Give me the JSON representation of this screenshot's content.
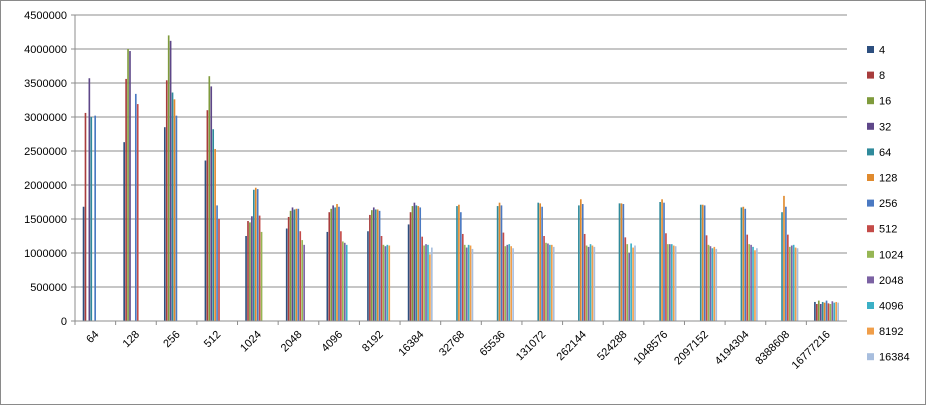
{
  "chart_data": {
    "type": "bar",
    "title": "",
    "xlabel": "",
    "ylabel": "",
    "ylim": [
      0,
      4500000
    ],
    "yticks": [
      0,
      500000,
      1000000,
      1500000,
      2000000,
      2500000,
      3000000,
      3500000,
      4000000,
      4500000
    ],
    "grid": true,
    "legend_position": "right",
    "categories": [
      "64",
      "128",
      "256",
      "512",
      "1024",
      "2048",
      "4096",
      "8192",
      "16384",
      "32768",
      "65536",
      "131072",
      "262144",
      "524288",
      "1048576",
      "2097152",
      "4194304",
      "8388608",
      "16777216"
    ],
    "series": [
      {
        "name": "4",
        "color": "#2d4f7f",
        "values": [
          1680000,
          2630000,
          2850000,
          2360000,
          1250000,
          1360000,
          1310000,
          1320000,
          1420000,
          null,
          null,
          null,
          null,
          null,
          null,
          null,
          null,
          null,
          280000
        ]
      },
      {
        "name": "8",
        "color": "#a83c3c",
        "values": [
          3060000,
          3560000,
          3540000,
          3100000,
          1470000,
          1530000,
          1600000,
          1560000,
          1600000,
          null,
          null,
          null,
          null,
          null,
          null,
          null,
          null,
          null,
          250000
        ]
      },
      {
        "name": "16",
        "color": "#7f9b3c",
        "values": [
          null,
          4000000,
          4200000,
          3600000,
          1450000,
          1620000,
          1650000,
          1630000,
          1690000,
          null,
          null,
          null,
          null,
          null,
          null,
          null,
          null,
          null,
          300000
        ]
      },
      {
        "name": "32",
        "color": "#5e4789",
        "values": [
          3570000,
          3970000,
          4120000,
          3450000,
          1540000,
          1670000,
          1700000,
          1670000,
          1740000,
          null,
          null,
          null,
          null,
          null,
          null,
          null,
          null,
          null,
          250000
        ]
      },
      {
        "name": "64",
        "color": "#2f8a9b",
        "values": [
          3000000,
          null,
          3360000,
          2820000,
          1930000,
          1640000,
          1670000,
          1640000,
          1700000,
          1690000,
          1690000,
          1740000,
          1700000,
          1730000,
          1750000,
          1710000,
          1670000,
          1600000,
          280000
        ]
      },
      {
        "name": "128",
        "color": "#e08a2e",
        "values": [
          null,
          null,
          3260000,
          2530000,
          1960000,
          1650000,
          1720000,
          1640000,
          1690000,
          1710000,
          1740000,
          1730000,
          1790000,
          1730000,
          1790000,
          1710000,
          1680000,
          1840000,
          270000
        ]
      },
      {
        "name": "256",
        "color": "#4a79c2",
        "values": [
          3020000,
          3340000,
          3020000,
          1700000,
          1940000,
          1650000,
          1680000,
          1620000,
          1670000,
          1600000,
          1700000,
          1680000,
          1720000,
          1720000,
          1740000,
          1700000,
          1650000,
          1680000,
          300000
        ]
      },
      {
        "name": "512",
        "color": "#c44b48",
        "values": [
          null,
          3190000,
          null,
          1500000,
          1550000,
          1320000,
          1320000,
          1250000,
          1240000,
          1280000,
          1300000,
          1250000,
          1280000,
          1230000,
          1290000,
          1260000,
          1270000,
          1270000,
          260000
        ]
      },
      {
        "name": "1024",
        "color": "#96b654",
        "values": [
          null,
          null,
          null,
          null,
          1310000,
          1190000,
          1170000,
          1120000,
          1110000,
          1120000,
          1100000,
          1150000,
          1110000,
          1130000,
          1130000,
          1120000,
          1130000,
          1090000,
          250000
        ]
      },
      {
        "name": "2048",
        "color": "#7b62a3",
        "values": [
          null,
          null,
          null,
          null,
          null,
          1120000,
          1150000,
          1100000,
          1130000,
          1080000,
          1120000,
          1140000,
          1090000,
          1000000,
          1130000,
          1100000,
          1120000,
          1110000,
          290000
        ]
      },
      {
        "name": "4096",
        "color": "#3bb0c6",
        "values": [
          null,
          null,
          null,
          null,
          null,
          null,
          1120000,
          1120000,
          1120000,
          1120000,
          1130000,
          1120000,
          1130000,
          1140000,
          1130000,
          1070000,
          1090000,
          1120000,
          270000
        ]
      },
      {
        "name": "8192",
        "color": "#f09e49",
        "values": [
          null,
          null,
          null,
          null,
          null,
          null,
          null,
          1110000,
          980000,
          1110000,
          1100000,
          1120000,
          1110000,
          1080000,
          1110000,
          1090000,
          1040000,
          1080000,
          280000
        ]
      },
      {
        "name": "16384",
        "color": "#a8bede",
        "values": [
          null,
          null,
          null,
          null,
          null,
          null,
          null,
          null,
          1080000,
          1060000,
          1070000,
          1090000,
          1090000,
          1110000,
          1100000,
          1060000,
          1070000,
          1070000,
          270000
        ]
      }
    ]
  }
}
